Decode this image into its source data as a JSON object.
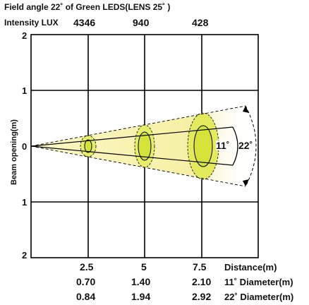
{
  "header": {
    "line1": "Field angle 22˚ of Green LEDS(LENS  25˚ )",
    "intensity_label": "Intensity LUX",
    "lux_values": [
      "4346",
      "940",
      "428"
    ]
  },
  "axes": {
    "y_label": "Beam opening(m)",
    "y_ticks": [
      "2",
      "1",
      "0",
      "1",
      "2"
    ]
  },
  "beam": {
    "inner_angle_label": "11˚",
    "outer_angle_label": "22˚",
    "colors": {
      "fill": "#f5f0b0",
      "ellipse": "#d8e64a",
      "grid": "#000000"
    }
  },
  "table": {
    "rows": [
      {
        "values": [
          "2.5",
          "5",
          "7.5"
        ],
        "label": "Distance(m)"
      },
      {
        "values": [
          "0.70",
          "1.40",
          "2.10"
        ],
        "label": "11˚ Diameter(m)"
      },
      {
        "values": [
          "0.84",
          "1.94",
          "2.92"
        ],
        "label": "22˚ Diameter(m)"
      }
    ]
  }
}
